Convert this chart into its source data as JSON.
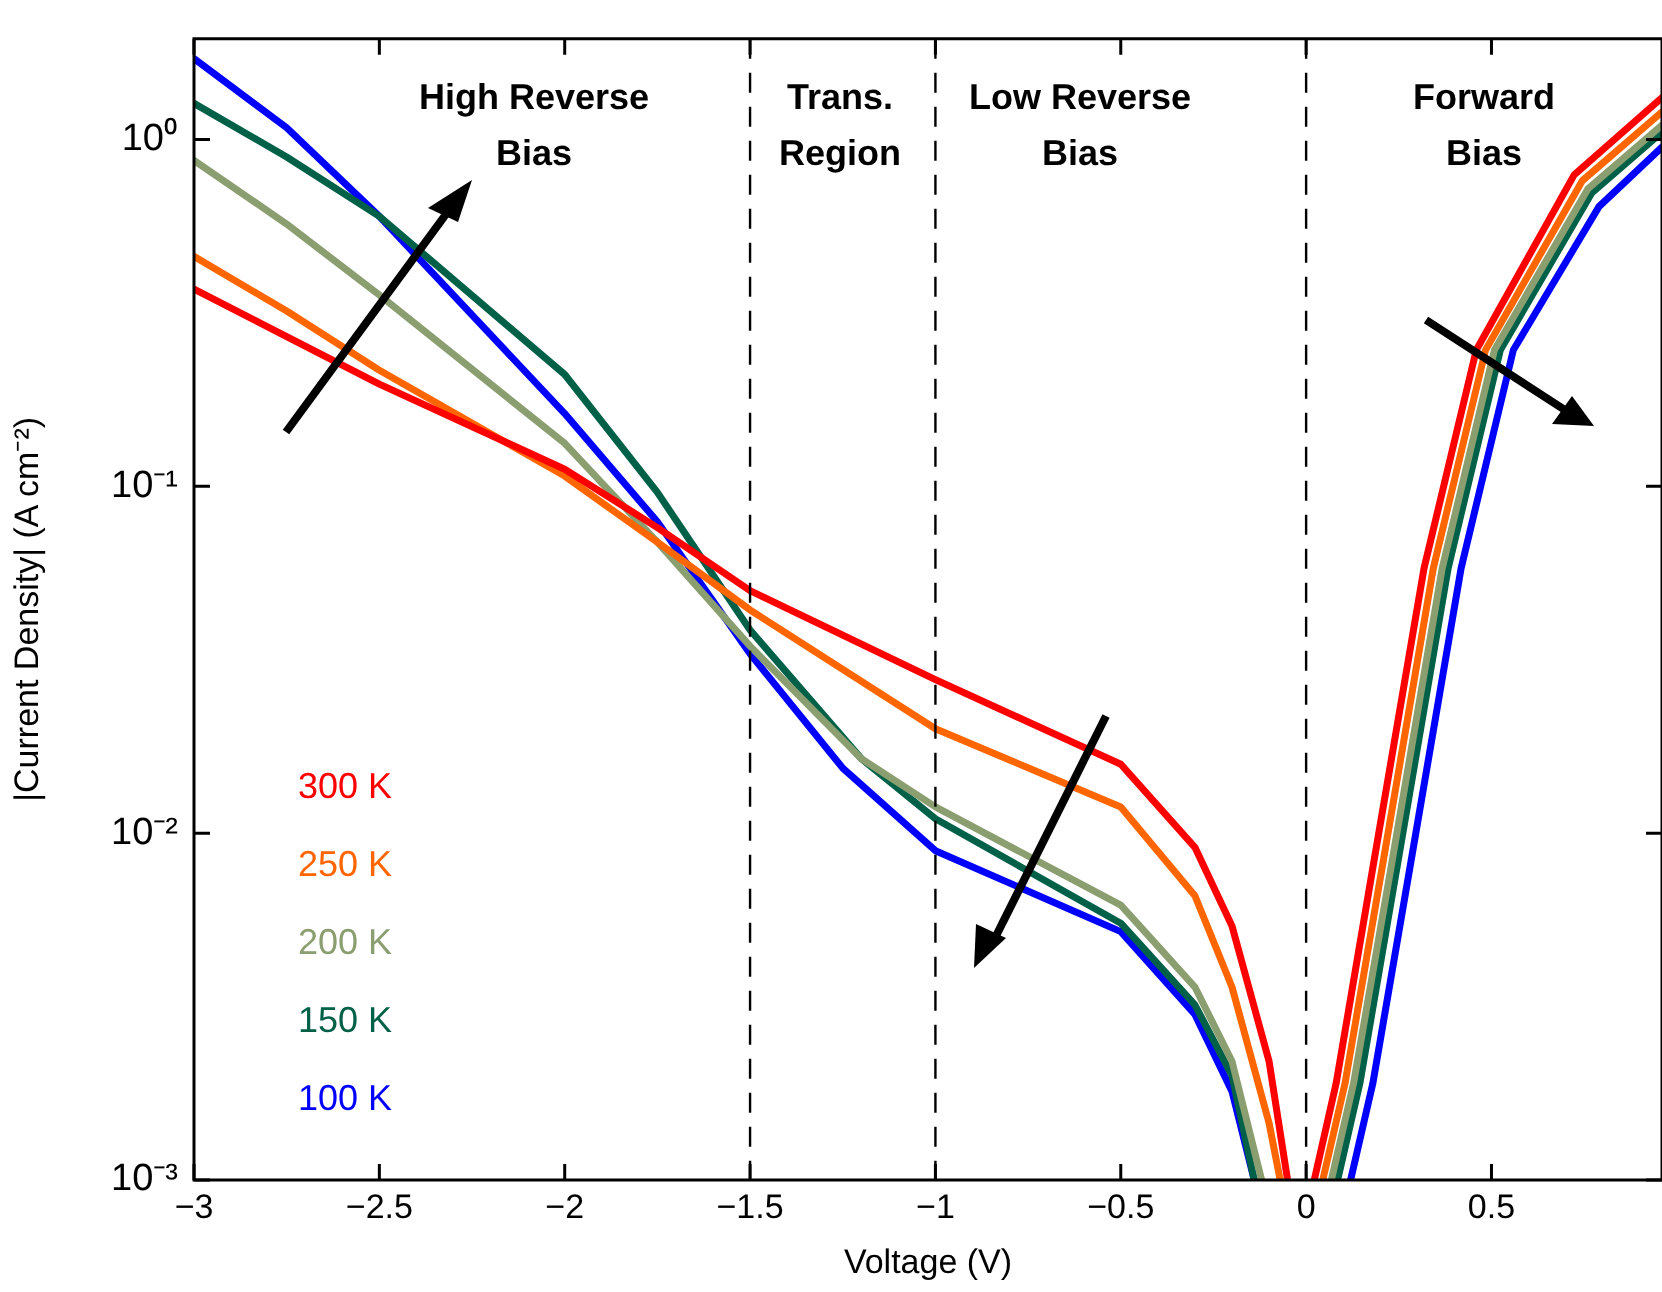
{
  "chart_data": {
    "type": "line",
    "xlabel": "Voltage (V)",
    "ylabel": "|Current Density| (A cm⁻²)",
    "log": "y",
    "grid": false,
    "legend": "bottom left",
    "marker": "none",
    "line_style": "solid",
    "xlim": [
      -3,
      0.96
    ],
    "ylim": [
      0.001,
      1.95
    ],
    "xticks": [
      {
        "value": -3,
        "label": "−3"
      },
      {
        "value": -2.5,
        "label": "−2.5"
      },
      {
        "value": -2,
        "label": "−2"
      },
      {
        "value": -1.5,
        "label": "−1.5"
      },
      {
        "value": -1,
        "label": "−1"
      },
      {
        "value": -0.5,
        "label": "−0.5"
      },
      0,
      0.5
    ],
    "yticks": [
      {
        "value": 0.001,
        "label": "10⁻³"
      },
      {
        "value": 0.01,
        "label": "10⁻²"
      },
      {
        "value": 0.1,
        "label": "10⁻¹"
      },
      {
        "value": 1,
        "label": "10⁰"
      }
    ],
    "ref_lines": [
      {
        "axis": "x",
        "value": -1.5,
        "label": null,
        "line_style": "dashed",
        "color": "#000000"
      },
      {
        "axis": "x",
        "value": -1,
        "label": null,
        "line_style": "dashed",
        "color": "#000000"
      },
      {
        "axis": "x",
        "value": 0,
        "label": null,
        "line_style": "dashed",
        "color": "#000000"
      }
    ],
    "annotations": [
      "High Reverse\nBias",
      "Trans.\nRegion",
      "Low Reverse\nBias",
      "Forward\nBias"
    ],
    "series": [
      {
        "name": "300 K",
        "color": "#ff0000",
        "x": [
          -3,
          -2.75,
          -2.5,
          -2,
          -1.75,
          -1.5,
          -1,
          -0.5,
          -0.3,
          -0.2,
          -0.1,
          -0.05,
          null,
          0.022,
          0.081,
          0.183,
          0.318,
          0.459,
          0.723,
          0.96
        ],
        "values": [
          0.37,
          0.27,
          0.197,
          0.112,
          0.076,
          0.05,
          0.0277,
          0.0158,
          0.0091,
          0.0054,
          0.0022,
          0.001,
          null,
          0.001,
          0.0019,
          0.0083,
          0.058,
          0.247,
          0.79,
          1.32
        ]
      },
      {
        "name": "250 K",
        "color": "#ff6600",
        "x": [
          -3,
          -2.75,
          -2.5,
          -2,
          -1.75,
          -1.5,
          -1,
          -0.5,
          -0.3,
          -0.2,
          -0.1,
          -0.07,
          null,
          0.045,
          0.105,
          0.208,
          0.343,
          0.484,
          0.745,
          0.96
        ],
        "values": [
          0.46,
          0.32,
          0.216,
          0.107,
          0.069,
          0.044,
          0.02,
          0.0119,
          0.0066,
          0.0036,
          0.00146,
          0.001,
          null,
          0.001,
          0.0019,
          0.0083,
          0.058,
          0.247,
          0.76,
          1.2
        ]
      },
      {
        "name": "200 K",
        "color": "#8a9e70",
        "x": [
          -3,
          -2.75,
          -2.5,
          -2,
          -1.75,
          -1.5,
          -1.2,
          -1,
          -0.5,
          -0.3,
          -0.2,
          -0.12,
          null,
          0.068,
          0.128,
          0.232,
          0.367,
          0.508,
          0.76,
          0.96
        ],
        "values": [
          0.87,
          0.57,
          0.356,
          0.133,
          0.069,
          0.0346,
          0.0164,
          0.0119,
          0.0062,
          0.0036,
          0.0022,
          0.001,
          null,
          0.001,
          0.0019,
          0.0083,
          0.058,
          0.247,
          0.72,
          1.1
        ]
      },
      {
        "name": "150 K",
        "color": "#006048",
        "x": [
          -3,
          -2.75,
          -2.5,
          -2,
          -1.75,
          -1.5,
          -1.2,
          -1,
          -0.5,
          -0.3,
          -0.2,
          -0.14,
          null,
          0.085,
          0.145,
          0.248,
          0.383,
          0.524,
          0.77,
          0.96
        ],
        "values": [
          1.27,
          0.89,
          0.6,
          0.21,
          0.096,
          0.0385,
          0.0164,
          0.011,
          0.0055,
          0.0032,
          0.002,
          0.001,
          null,
          0.001,
          0.0019,
          0.0083,
          0.058,
          0.247,
          0.7,
          1.05
        ]
      },
      {
        "name": "100 K",
        "color": "#0000ff",
        "x": [
          -3,
          -2.75,
          -2.5,
          -2,
          -1.75,
          -1.5,
          -1.25,
          -1,
          -0.5,
          -0.3,
          -0.2,
          -0.14,
          null,
          0.12,
          0.18,
          0.283,
          0.418,
          0.559,
          0.79,
          0.96
        ],
        "values": [
          1.71,
          1.08,
          0.6,
          0.162,
          0.079,
          0.0329,
          0.0154,
          0.0089,
          0.0052,
          0.003,
          0.0018,
          0.001,
          null,
          0.001,
          0.0019,
          0.0083,
          0.058,
          0.247,
          0.64,
          0.95
        ]
      }
    ]
  }
}
